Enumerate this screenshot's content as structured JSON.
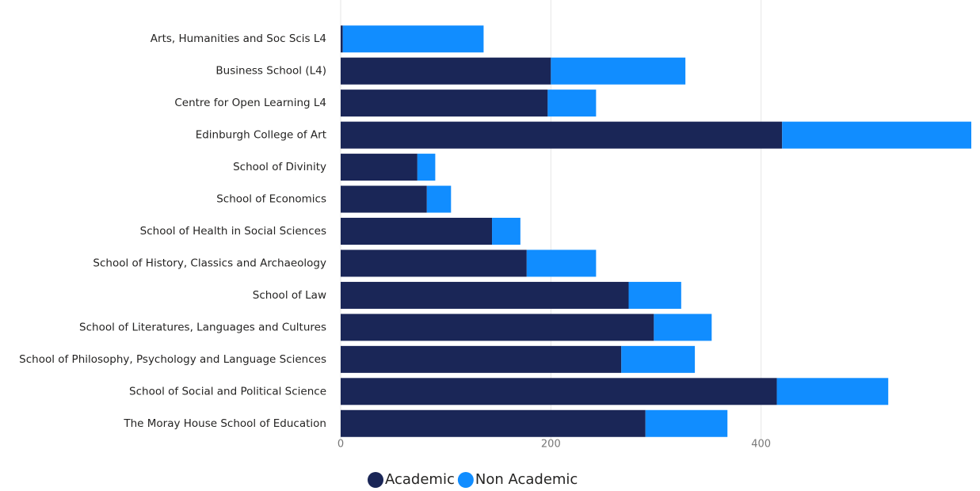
{
  "chart_data": {
    "type": "stacked-barh",
    "categories": [
      "Arts, Humanities and Soc Scis L4",
      "Business School (L4)",
      "Centre for Open Learning L4",
      "Edinburgh College of Art",
      "School of Divinity",
      "School of Economics",
      "School of Health in Social Sciences",
      "School of History, Classics and Archaeology",
      "School of Law",
      "School of Literatures, Languages and Cultures",
      "School of Philosophy, Psychology and Language Sciences",
      "School of Social and Political Science",
      "The Moray House School of Education"
    ],
    "series": [
      {
        "name": "Academic",
        "color": "#1a2657",
        "values": [
          2,
          200,
          197,
          420,
          73,
          82,
          144,
          177,
          274,
          298,
          267,
          415,
          290
        ]
      },
      {
        "name": "Non Academic",
        "color": "#118dff",
        "values": [
          134,
          128,
          46,
          180,
          17,
          23,
          27,
          66,
          50,
          55,
          70,
          106,
          78
        ]
      }
    ],
    "xlim": [
      0,
      600
    ],
    "xticks": [
      0,
      200,
      400
    ],
    "grid": true,
    "legend": "bottom"
  }
}
